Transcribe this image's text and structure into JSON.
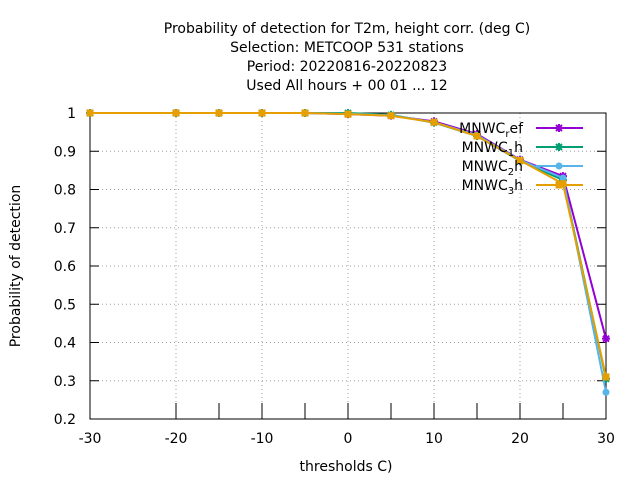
{
  "chart_data": {
    "type": "line",
    "title_lines": [
      "Probability of detection  for T2m, height corr. (deg C)",
      "Selection: METCOOP    531 stations",
      "Period: 20220816-20220823",
      "Used  All hours  + 00 01 ... 12"
    ],
    "xlabel": "thresholds C)",
    "ylabel": "Probability of detection",
    "xlim": [
      -30,
      30
    ],
    "ylim": [
      0.2,
      1.0
    ],
    "xticks": [
      -30,
      -20,
      -10,
      0,
      10,
      20,
      30
    ],
    "yticks": [
      0.2,
      0.3,
      0.4,
      0.5,
      0.6,
      0.7,
      0.8,
      0.9,
      1.0
    ],
    "ytick_labels": [
      "0.2",
      "0.3",
      "0.4",
      "0.5",
      "0.6",
      "0.7",
      "0.8",
      "0.9",
      "1"
    ],
    "x_minor_ticks": [
      -30,
      -20,
      -15,
      -10,
      -5,
      0,
      5,
      10,
      15,
      20,
      25,
      30
    ],
    "grid": true,
    "legend_position": "top-right",
    "x": [
      -30,
      -20,
      -15,
      -10,
      -5,
      0,
      5,
      10,
      15,
      20,
      25,
      30
    ],
    "series": [
      {
        "name_main": "MNWC",
        "name_sub": "r",
        "name_tail": "ef",
        "color": "#9400d3",
        "marker": "star",
        "values": [
          1.0,
          1.0,
          1.0,
          1.0,
          1.0,
          0.997,
          0.993,
          0.978,
          0.945,
          0.878,
          0.835,
          0.41
        ]
      },
      {
        "name_main": "MNWC",
        "name_sub": "1",
        "name_tail": "h",
        "color": "#009e73",
        "marker": "star",
        "values": [
          1.0,
          1.0,
          1.0,
          1.0,
          1.0,
          1.0,
          0.995,
          0.975,
          0.94,
          0.875,
          0.825,
          0.305
        ]
      },
      {
        "name_main": "MNWC",
        "name_sub": "2",
        "name_tail": "h",
        "color": "#56b4e9",
        "marker": "circle",
        "values": [
          1.0,
          1.0,
          1.0,
          1.0,
          1.0,
          0.998,
          0.994,
          0.976,
          0.942,
          0.877,
          0.83,
          0.27
        ]
      },
      {
        "name_main": "MNWC",
        "name_sub": "3",
        "name_tail": "h",
        "color": "#e69f00",
        "marker": "square",
        "values": [
          1.0,
          1.0,
          1.0,
          1.0,
          1.0,
          0.997,
          0.993,
          0.976,
          0.94,
          0.876,
          0.815,
          0.31
        ]
      }
    ]
  }
}
